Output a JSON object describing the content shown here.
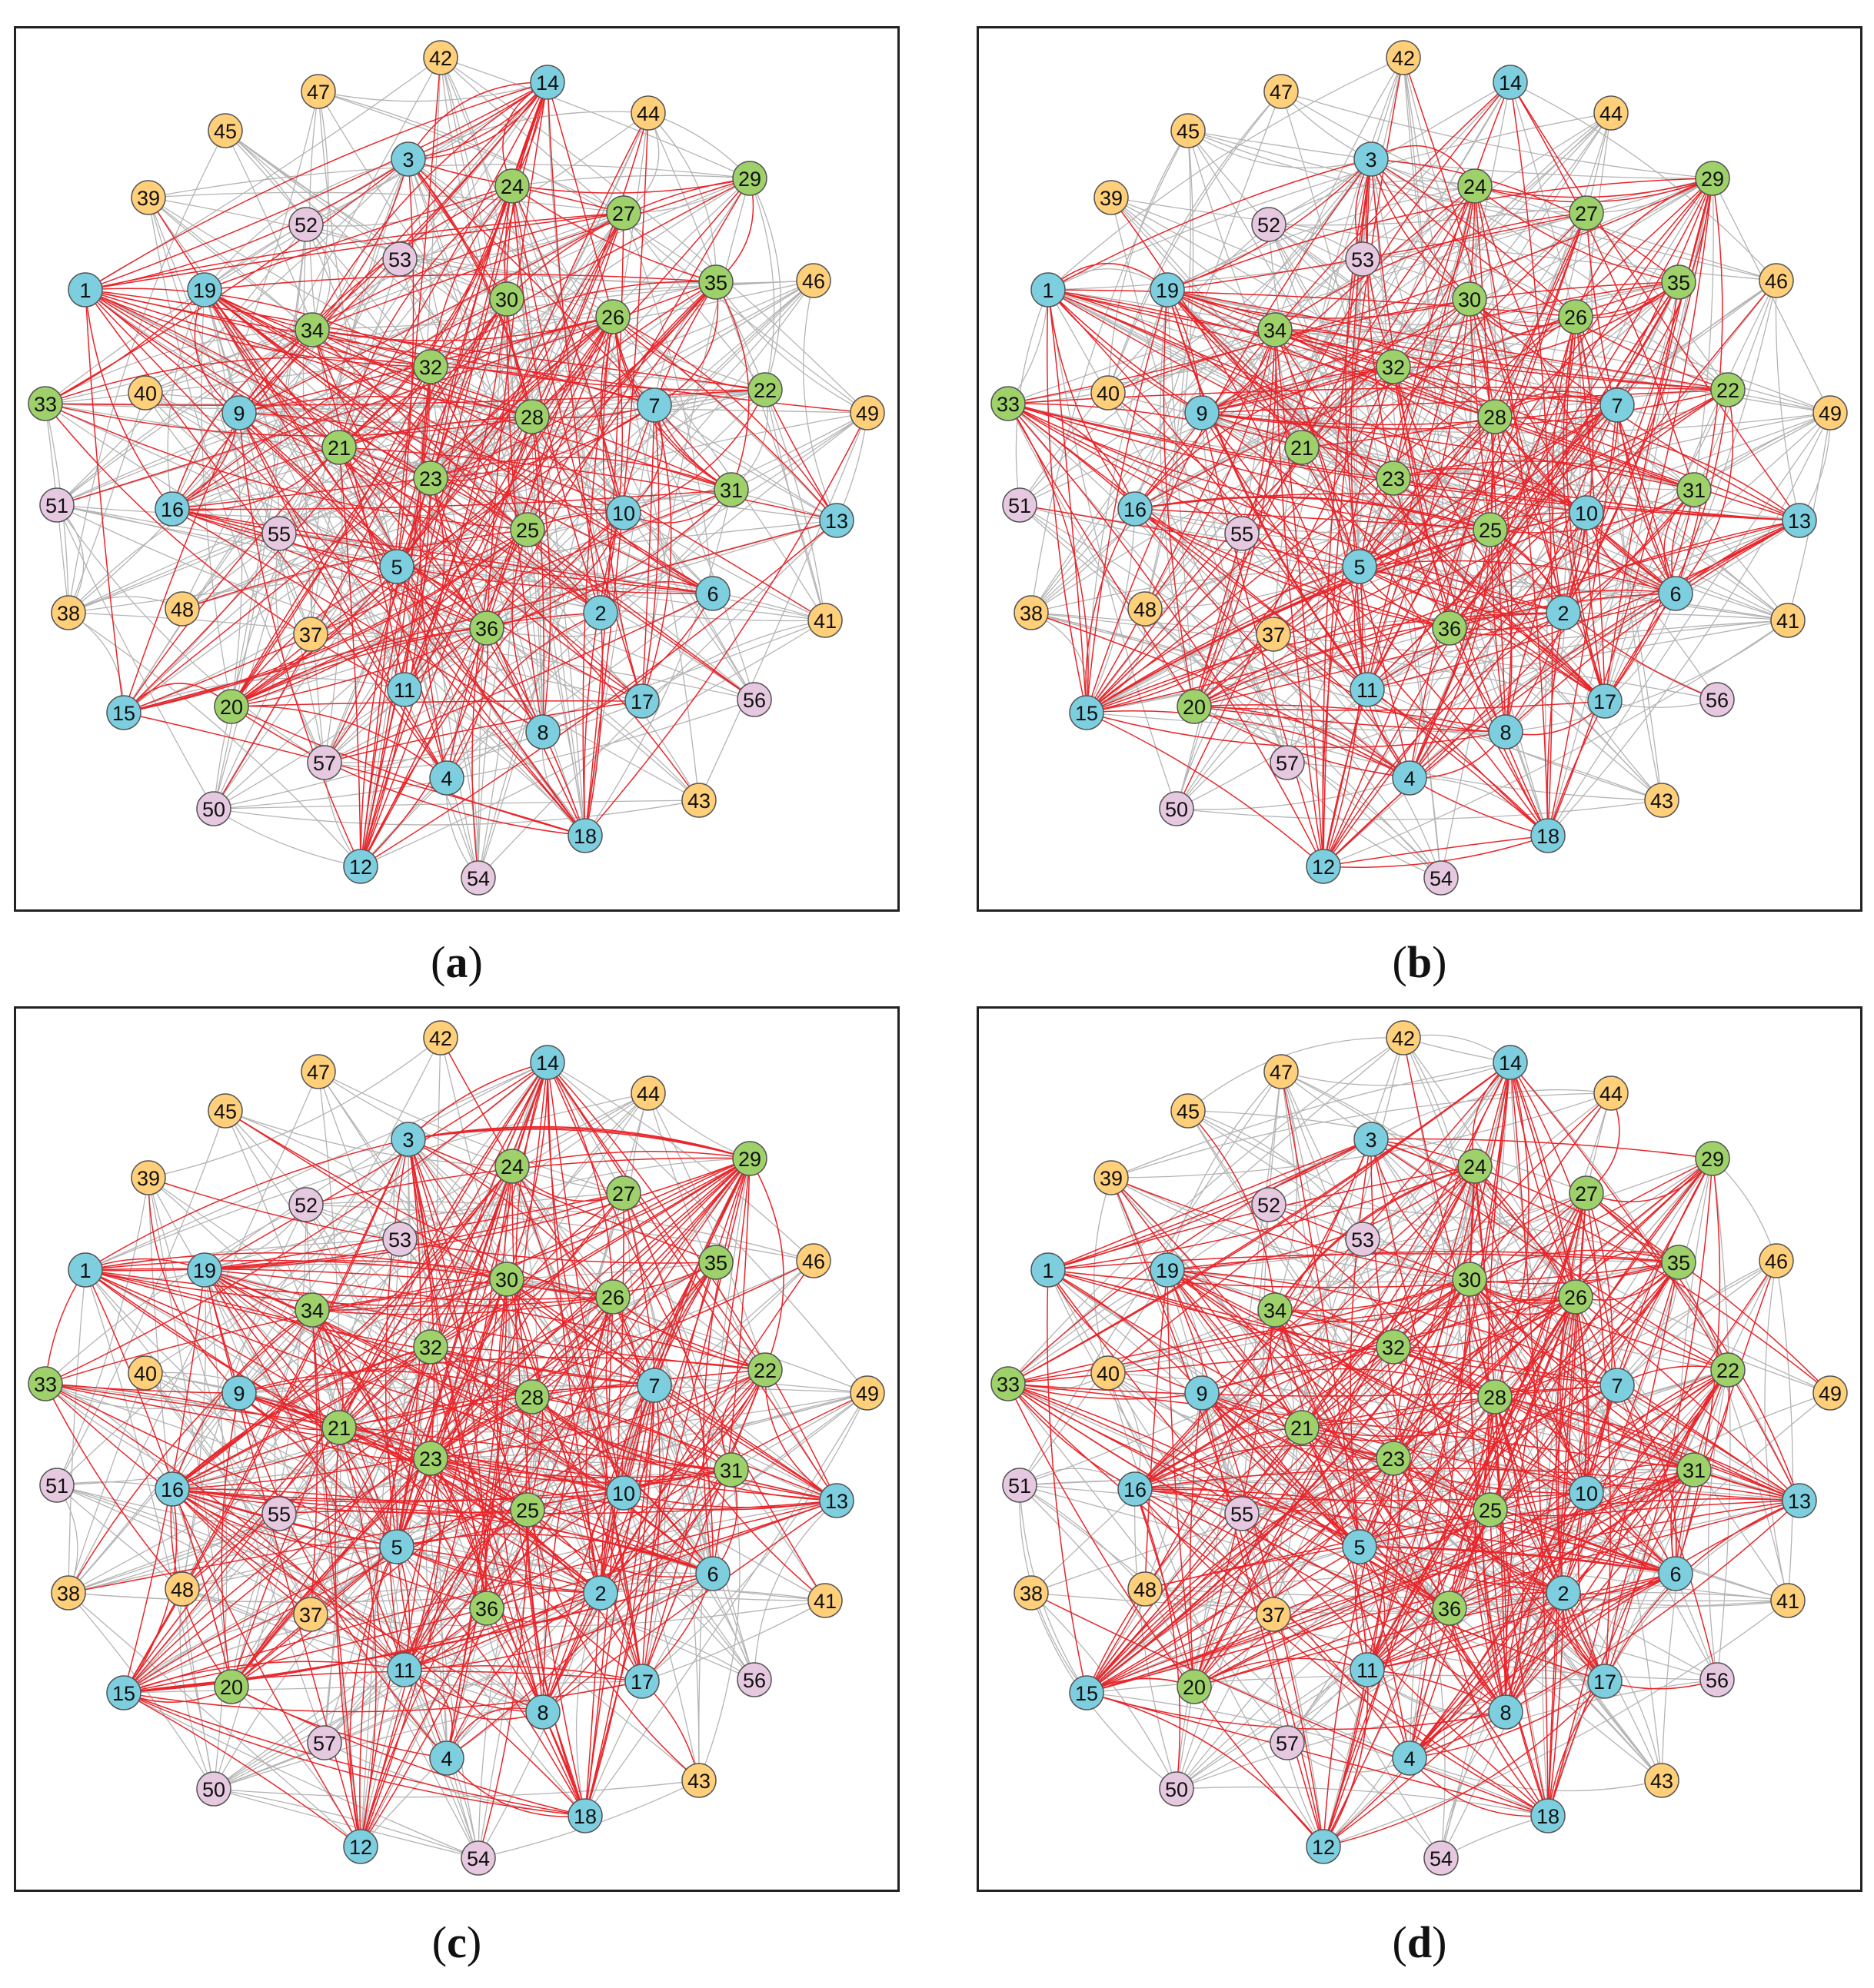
{
  "colors": {
    "blue": "#7dcfe0",
    "green": "#9fd16a",
    "orange": "#ffcf7a",
    "pink": "#e6c9e0",
    "edge_red": "#e8262b",
    "edge_gray": "#b4b4b4",
    "node_stroke": "#555555"
  },
  "node_groups": {
    "blue": [
      "1",
      "2",
      "3",
      "4",
      "5",
      "6",
      "7",
      "8",
      "9",
      "10",
      "11",
      "12",
      "13",
      "14",
      "15",
      "16",
      "17",
      "18",
      "19"
    ],
    "green": [
      "20",
      "21",
      "22",
      "23",
      "24",
      "25",
      "26",
      "27",
      "28",
      "29",
      "30",
      "31",
      "32",
      "33",
      "34",
      "35",
      "36"
    ],
    "orange": [
      "37",
      "38",
      "39",
      "40",
      "41",
      "42",
      "43",
      "44",
      "45",
      "46",
      "47",
      "48",
      "49"
    ],
    "pink": [
      "50",
      "51",
      "52",
      "53",
      "54",
      "55",
      "56",
      "57"
    ]
  },
  "panels": [
    {
      "id": "a",
      "caption_open": "(",
      "caption_letter": "a",
      "caption_close": ")"
    },
    {
      "id": "b",
      "caption_open": "(",
      "caption_letter": "b",
      "caption_close": ")"
    },
    {
      "id": "c",
      "caption_open": "(",
      "caption_letter": "c",
      "caption_close": ")"
    },
    {
      "id": "d",
      "caption_open": "(",
      "caption_letter": "d",
      "caption_close": ")"
    }
  ]
}
